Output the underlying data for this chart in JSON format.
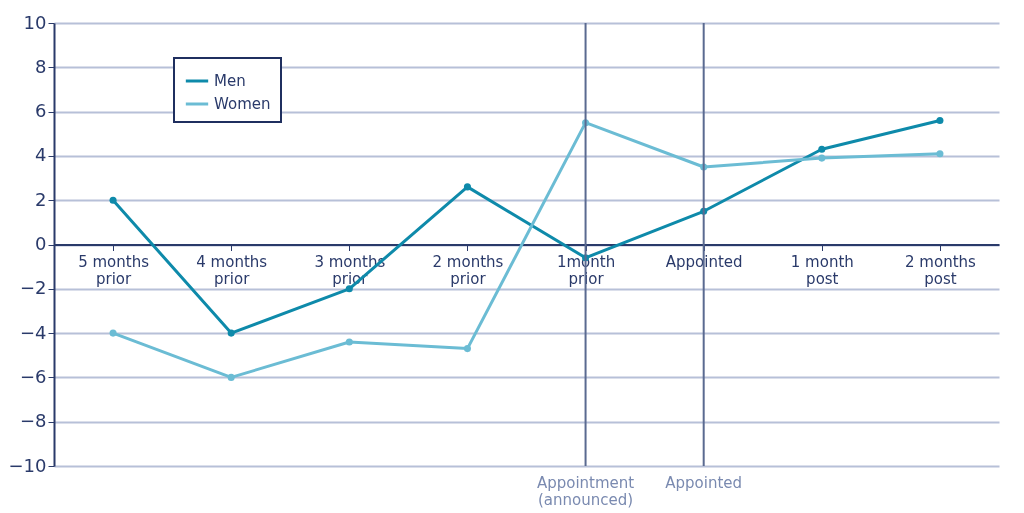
{
  "chart_data": {
    "type": "line",
    "categories": [
      "5 months prior",
      "4 months prior",
      "3 months prior",
      "2 months prior",
      "1month prior",
      "Appointed",
      "1 month post",
      "2 months post"
    ],
    "series": [
      {
        "name": "Men",
        "color": "#0e8aaa",
        "values": [
          2,
          -4,
          -2,
          2.6,
          -0.6,
          1.5,
          4.3,
          5.6
        ]
      },
      {
        "name": "Women",
        "color": "#6bbcd4",
        "values": [
          -4,
          -6,
          -4.4,
          -4.7,
          5.5,
          3.5,
          3.9,
          4.1
        ]
      }
    ],
    "ylim": [
      -10,
      10
    ],
    "yticks": [
      -10,
      -8,
      -6,
      -4,
      -2,
      0,
      2,
      4,
      6,
      8,
      10
    ],
    "ref_lines": [
      {
        "axis": "x",
        "value": "1month prior",
        "label": "Appointment (announced)",
        "color": "#5a6a90"
      },
      {
        "axis": "x",
        "value": "Appointed",
        "label": "Appointed",
        "color": "#5a6a90"
      }
    ],
    "grid": "y",
    "legend": "top left",
    "marker": "circle",
    "line_style": "solid"
  }
}
